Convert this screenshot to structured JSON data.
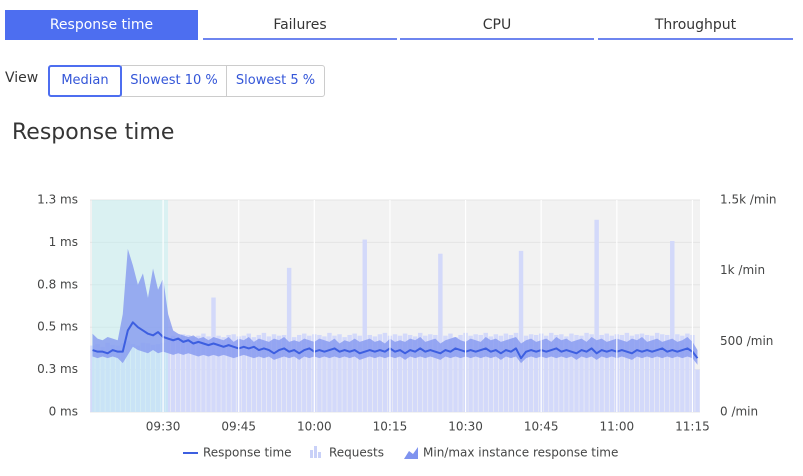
{
  "tabs": [
    {
      "label": "Response time",
      "active": true
    },
    {
      "label": "Failures",
      "active": false
    },
    {
      "label": "CPU",
      "active": false
    },
    {
      "label": "Throughput",
      "active": false
    }
  ],
  "view": {
    "label": "View",
    "options": [
      {
        "label": "Median",
        "selected": true
      },
      {
        "label": "Slowest 10 %",
        "selected": false
      },
      {
        "label": "Slowest 5 %",
        "selected": false
      }
    ]
  },
  "chart_data": {
    "type": "combo",
    "title": "Response time",
    "categories": [
      null,
      null,
      null,
      null,
      null,
      null,
      null,
      null,
      null,
      null,
      null,
      null,
      null,
      null,
      "09:30",
      null,
      null,
      null,
      null,
      null,
      null,
      null,
      null,
      null,
      null,
      null,
      null,
      null,
      null,
      "09:45",
      null,
      null,
      null,
      null,
      null,
      null,
      null,
      null,
      null,
      null,
      null,
      null,
      null,
      null,
      "10:00",
      null,
      null,
      null,
      null,
      null,
      null,
      null,
      null,
      null,
      null,
      null,
      null,
      null,
      null,
      "10:15",
      null,
      null,
      null,
      null,
      null,
      null,
      null,
      null,
      null,
      null,
      null,
      null,
      null,
      null,
      "10:30",
      null,
      null,
      null,
      null,
      null,
      null,
      null,
      null,
      null,
      null,
      null,
      null,
      null,
      null,
      "10:45",
      null,
      null,
      null,
      null,
      null,
      null,
      null,
      null,
      null,
      null,
      null,
      null,
      null,
      null,
      "11:00",
      null,
      null,
      null,
      null,
      null,
      null,
      null,
      null,
      null,
      null,
      null,
      null,
      null,
      null,
      "11:15",
      null
    ],
    "ylim": [
      0,
      1.3
    ],
    "yticks": [
      {
        "value": 0,
        "label": "0 ms"
      },
      {
        "value": 0.26,
        "label": "0.3 ms"
      },
      {
        "value": 0.52,
        "label": "0.5 ms"
      },
      {
        "value": 0.78,
        "label": "0.8 ms"
      },
      {
        "value": 1.04,
        "label": "1 ms"
      },
      {
        "value": 1.3,
        "label": "1.3 ms"
      }
    ],
    "y2lim": [
      0,
      1500
    ],
    "y2ticks": [
      {
        "value": 0,
        "label": "0 /min"
      },
      {
        "value": 500,
        "label": "500 /min"
      },
      {
        "value": 1000,
        "label": "1k /min"
      },
      {
        "value": 1500,
        "label": "1.5k /min"
      }
    ],
    "grid": true,
    "series": [
      {
        "name": "Response time",
        "type": "line",
        "color": "#3d5fe0",
        "values": [
          0.38,
          0.37,
          0.37,
          0.36,
          0.38,
          0.37,
          0.37,
          0.5,
          0.55,
          0.52,
          0.5,
          0.48,
          0.47,
          0.49,
          0.46,
          0.45,
          0.44,
          0.45,
          0.43,
          0.44,
          0.42,
          0.43,
          0.42,
          0.41,
          0.42,
          0.41,
          0.4,
          0.41,
          0.4,
          0.39,
          0.4,
          0.39,
          0.4,
          0.38,
          0.39,
          0.38,
          0.36,
          0.38,
          0.39,
          0.37,
          0.38,
          0.36,
          0.38,
          0.39,
          0.37,
          0.38,
          0.37,
          0.38,
          0.39,
          0.37,
          0.38,
          0.37,
          0.38,
          0.36,
          0.37,
          0.38,
          0.37,
          0.38,
          0.37,
          0.39,
          0.37,
          0.38,
          0.36,
          0.38,
          0.37,
          0.39,
          0.37,
          0.38,
          0.37,
          0.36,
          0.38,
          0.37,
          0.39,
          0.38,
          0.37,
          0.38,
          0.37,
          0.38,
          0.39,
          0.37,
          0.38,
          0.36,
          0.38,
          0.37,
          0.39,
          0.33,
          0.37,
          0.38,
          0.37,
          0.38,
          0.37,
          0.38,
          0.39,
          0.37,
          0.38,
          0.37,
          0.36,
          0.38,
          0.37,
          0.39,
          0.36,
          0.38,
          0.37,
          0.38,
          0.37,
          0.38,
          0.37,
          0.36,
          0.38,
          0.37,
          0.38,
          0.37,
          0.38,
          0.39,
          0.37,
          0.38,
          0.37,
          0.38,
          0.39,
          0.37,
          0.33
        ]
      },
      {
        "name": "Requests",
        "type": "bar",
        "axis": "y2",
        "color": "#d3d9fa",
        "values": [
          470,
          480,
          460,
          490,
          475,
          470,
          485,
          500,
          480,
          470,
          490,
          485,
          475,
          480,
          490,
          520,
          540,
          530,
          550,
          545,
          530,
          540,
          555,
          535,
          810,
          540,
          530,
          545,
          550,
          535,
          540,
          555,
          530,
          545,
          560,
          535,
          550,
          540,
          545,
          1020,
          530,
          545,
          555,
          540,
          550,
          545,
          535,
          560,
          540,
          550,
          530,
          545,
          555,
          540,
          1220,
          545,
          535,
          550,
          560,
          540,
          550,
          540,
          555,
          545,
          535,
          560,
          540,
          550,
          545,
          1120,
          540,
          555,
          530,
          545,
          560,
          540,
          550,
          545,
          560,
          535,
          550,
          540,
          555,
          545,
          560,
          1140,
          540,
          550,
          545,
          555,
          540,
          560,
          545,
          550,
          535,
          555,
          545,
          540,
          560,
          550,
          1360,
          545,
          555,
          540,
          550,
          545,
          560,
          540,
          550,
          555,
          545,
          540,
          560,
          550,
          545,
          1210,
          550,
          540,
          555,
          545,
          300
        ]
      },
      {
        "name": "Min/max instance response time",
        "type": "band",
        "color": "#7f93ef",
        "low": [
          0.34,
          0.33,
          0.34,
          0.33,
          0.34,
          0.33,
          0.3,
          0.35,
          0.4,
          0.38,
          0.37,
          0.36,
          0.38,
          0.36,
          0.37,
          0.36,
          0.35,
          0.36,
          0.35,
          0.36,
          0.35,
          0.34,
          0.35,
          0.34,
          0.35,
          0.34,
          0.35,
          0.34,
          0.33,
          0.34,
          0.35,
          0.34,
          0.33,
          0.34,
          0.33,
          0.34,
          0.32,
          0.33,
          0.34,
          0.33,
          0.34,
          0.32,
          0.34,
          0.33,
          0.34,
          0.33,
          0.34,
          0.33,
          0.34,
          0.33,
          0.34,
          0.33,
          0.34,
          0.32,
          0.33,
          0.34,
          0.33,
          0.34,
          0.33,
          0.34,
          0.33,
          0.34,
          0.32,
          0.34,
          0.33,
          0.34,
          0.33,
          0.34,
          0.33,
          0.32,
          0.34,
          0.33,
          0.34,
          0.33,
          0.34,
          0.33,
          0.34,
          0.33,
          0.34,
          0.33,
          0.34,
          0.32,
          0.34,
          0.33,
          0.34,
          0.3,
          0.33,
          0.34,
          0.33,
          0.34,
          0.33,
          0.34,
          0.33,
          0.34,
          0.33,
          0.34,
          0.32,
          0.34,
          0.33,
          0.34,
          0.32,
          0.34,
          0.33,
          0.34,
          0.33,
          0.34,
          0.33,
          0.32,
          0.34,
          0.33,
          0.34,
          0.33,
          0.34,
          0.33,
          0.34,
          0.33,
          0.34,
          0.33,
          0.34,
          0.33,
          0.29
        ],
        "values": [
          0.48,
          0.45,
          0.44,
          0.46,
          0.45,
          0.44,
          0.6,
          1.0,
          0.9,
          0.78,
          0.85,
          0.7,
          0.88,
          0.75,
          0.82,
          0.6,
          0.5,
          0.48,
          0.47,
          0.46,
          0.47,
          0.45,
          0.46,
          0.44,
          0.46,
          0.45,
          0.44,
          0.46,
          0.43,
          0.45,
          0.44,
          0.46,
          0.43,
          0.45,
          0.44,
          0.43,
          0.45,
          0.44,
          0.46,
          0.43,
          0.44,
          0.43,
          0.45,
          0.44,
          0.43,
          0.45,
          0.44,
          0.43,
          0.45,
          0.42,
          0.44,
          0.43,
          0.45,
          0.43,
          0.44,
          0.45,
          0.43,
          0.44,
          0.42,
          0.45,
          0.43,
          0.44,
          0.43,
          0.45,
          0.44,
          0.46,
          0.43,
          0.44,
          0.45,
          0.42,
          0.44,
          0.45,
          0.46,
          0.44,
          0.43,
          0.45,
          0.44,
          0.43,
          0.46,
          0.44,
          0.45,
          0.43,
          0.44,
          0.45,
          0.46,
          0.42,
          0.44,
          0.45,
          0.43,
          0.44,
          0.45,
          0.43,
          0.46,
          0.44,
          0.45,
          0.43,
          0.44,
          0.45,
          0.43,
          0.46,
          0.44,
          0.45,
          0.43,
          0.44,
          0.45,
          0.44,
          0.43,
          0.45,
          0.44,
          0.46,
          0.43,
          0.44,
          0.45,
          0.43,
          0.44,
          0.45,
          0.43,
          0.44,
          0.46,
          0.43,
          0.38
        ]
      }
    ]
  }
}
